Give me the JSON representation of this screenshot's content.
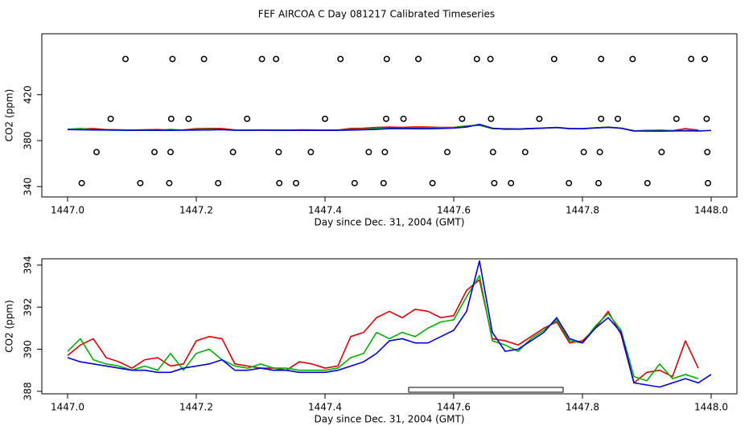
{
  "title": "FEF AIRCOA C  Day 081217  Calibrated Timeseries",
  "chart_data": [
    {
      "type": "line",
      "xlabel": "Day since Dec. 31, 2004 (GMT)",
      "ylabel": "CO2 (ppm)",
      "xlim": [
        1446.96,
        1448.04
      ],
      "ylim": [
        331,
        473
      ],
      "xticks": [
        {
          "value": 1447,
          "label": "1447.0"
        },
        1447.2,
        1447.4,
        1447.6,
        1447.8,
        {
          "value": 1448,
          "label": "1448.0"
        }
      ],
      "yticks": [
        340,
        380,
        420
      ],
      "x": [
        1447.0,
        1447.02,
        1447.04,
        1447.06,
        1447.08,
        1447.1,
        1447.12,
        1447.14,
        1447.16,
        1447.18,
        1447.2,
        1447.22,
        1447.24,
        1447.26,
        1447.28,
        1447.3,
        1447.32,
        1447.34,
        1447.36,
        1447.38,
        1447.4,
        1447.42,
        1447.44,
        1447.46,
        1447.48,
        1447.5,
        1447.52,
        1447.54,
        1447.56,
        1447.58,
        1447.6,
        1447.62,
        1447.64,
        1447.66,
        1447.68,
        1447.7,
        1447.72,
        1447.74,
        1447.76,
        1447.78,
        1447.8,
        1447.82,
        1447.84,
        1447.86,
        1447.88,
        1447.9,
        1447.92,
        1447.94,
        1447.96,
        1447.98,
        1448.0
      ],
      "series": [
        {
          "color": "#e00000",
          "values": [
            389.7,
            390.2,
            390.5,
            389.6,
            389.4,
            389.1,
            389.5,
            389.6,
            389.2,
            389.3,
            390.4,
            390.6,
            390.5,
            389.3,
            389.2,
            389.1,
            389.1,
            389.0,
            389.4,
            389.3,
            389.1,
            389.2,
            390.6,
            390.8,
            391.5,
            391.8,
            391.5,
            391.9,
            391.8,
            391.5,
            391.6,
            392.8,
            393.3,
            390.5,
            390.4,
            390.2,
            390.6,
            391.0,
            391.3,
            390.3,
            390.4,
            391.0,
            391.8,
            390.7,
            388.4,
            388.9,
            389.0,
            388.7,
            390.4,
            389.1,
            null
          ]
        },
        {
          "color": "#00b000",
          "values": [
            389.9,
            390.5,
            389.5,
            389.3,
            389.2,
            389.0,
            389.2,
            389.0,
            389.8,
            389.0,
            389.8,
            390.0,
            389.5,
            389.2,
            389.1,
            389.3,
            389.1,
            389.1,
            389.0,
            389.0,
            389.0,
            389.1,
            389.6,
            389.8,
            390.8,
            390.5,
            390.8,
            390.6,
            391.0,
            391.3,
            391.4,
            392.5,
            393.5,
            390.4,
            390.2,
            389.9,
            390.5,
            390.9,
            391.4,
            390.4,
            390.3,
            391.1,
            391.7,
            390.9,
            388.7,
            388.5,
            389.3,
            388.6,
            388.8,
            388.6,
            null
          ]
        },
        {
          "color": "#0000e0",
          "values": [
            389.6,
            389.4,
            389.3,
            389.2,
            389.1,
            389.0,
            389.0,
            388.9,
            388.9,
            389.1,
            389.2,
            389.3,
            389.5,
            389.0,
            389.0,
            389.1,
            389.0,
            389.0,
            388.9,
            388.9,
            388.9,
            389.0,
            389.2,
            389.4,
            389.8,
            390.4,
            390.5,
            390.3,
            390.3,
            390.6,
            390.9,
            391.8,
            394.2,
            390.8,
            389.9,
            390.0,
            390.4,
            390.8,
            391.5,
            390.5,
            390.3,
            391.0,
            391.5,
            390.8,
            388.4,
            388.3,
            388.2,
            388.4,
            388.6,
            388.4,
            388.8
          ]
        },
        {
          "color": "#000000",
          "marker": "circle",
          "x": [
            1447.09,
            1447.163,
            1447.212,
            1447.302,
            1447.324,
            1447.424,
            1447.496,
            1447.545,
            1447.636,
            1447.657,
            1447.756,
            1447.829,
            1447.878,
            1447.969,
            1447.99,
            1447.067,
            1447.161,
            1447.188,
            1447.279,
            1447.4,
            1447.495,
            1447.522,
            1447.613,
            1447.658,
            1447.733,
            1447.829,
            1447.855,
            1447.946,
            1447.993,
            1447.045,
            1447.135,
            1447.16,
            1447.257,
            1447.328,
            1447.378,
            1447.468,
            1447.493,
            1447.59,
            1447.661,
            1447.711,
            1447.802,
            1447.827,
            1447.923,
            1447.994,
            1447.022,
            1447.113,
            1447.158,
            1447.234,
            1447.329,
            1447.355,
            1447.446,
            1447.491,
            1447.567,
            1447.663,
            1447.689,
            1447.779,
            1447.825,
            1447.901,
            1447.995
          ],
          "values": [
            451,
            451,
            451,
            451,
            451,
            451,
            451,
            451,
            451,
            451,
            451,
            451,
            451,
            451,
            451,
            399,
            399,
            399,
            399,
            399,
            399,
            399,
            399,
            399,
            399,
            399,
            399,
            399,
            399,
            370,
            370,
            370,
            370,
            370,
            370,
            370,
            370,
            370,
            370,
            370,
            370,
            370,
            370,
            370,
            343,
            343,
            343,
            343,
            343,
            343,
            343,
            343,
            343,
            343,
            343,
            343,
            343,
            343,
            343
          ]
        }
      ]
    },
    {
      "type": "line",
      "xlabel": "Day since Dec. 31, 2004 (GMT)",
      "ylabel": "CO2 (ppm)",
      "xlim": [
        1446.96,
        1448.04
      ],
      "ylim": [
        387.88,
        394.3
      ],
      "xticks": [
        {
          "value": 1447,
          "label": "1447.0"
        },
        1447.2,
        1447.4,
        1447.6,
        1447.8,
        {
          "value": 1448,
          "label": "1448.0"
        }
      ],
      "yticks": [
        388,
        390,
        392,
        394
      ],
      "span": [
        1447.53,
        1447.77
      ],
      "x": [
        1447.0,
        1447.02,
        1447.04,
        1447.06,
        1447.08,
        1447.1,
        1447.12,
        1447.14,
        1447.16,
        1447.18,
        1447.2,
        1447.22,
        1447.24,
        1447.26,
        1447.28,
        1447.3,
        1447.32,
        1447.34,
        1447.36,
        1447.38,
        1447.4,
        1447.42,
        1447.44,
        1447.46,
        1447.48,
        1447.5,
        1447.52,
        1447.54,
        1447.56,
        1447.58,
        1447.6,
        1447.62,
        1447.64,
        1447.66,
        1447.68,
        1447.7,
        1447.72,
        1447.74,
        1447.76,
        1447.78,
        1447.8,
        1447.82,
        1447.84,
        1447.86,
        1447.88,
        1447.9,
        1447.92,
        1447.94,
        1447.96,
        1447.98,
        1448.0
      ],
      "series": [
        {
          "color": "#e00000",
          "values": [
            389.7,
            390.2,
            390.5,
            389.6,
            389.4,
            389.1,
            389.5,
            389.6,
            389.2,
            389.3,
            390.4,
            390.6,
            390.5,
            389.3,
            389.2,
            389.1,
            389.1,
            389.0,
            389.4,
            389.3,
            389.1,
            389.2,
            390.6,
            390.8,
            391.5,
            391.8,
            391.5,
            391.9,
            391.8,
            391.5,
            391.6,
            392.8,
            393.3,
            390.5,
            390.4,
            390.2,
            390.6,
            391.0,
            391.3,
            390.3,
            390.4,
            391.0,
            391.8,
            390.7,
            388.4,
            388.9,
            389.0,
            388.7,
            390.4,
            389.1,
            null
          ]
        },
        {
          "color": "#00b000",
          "values": [
            389.9,
            390.5,
            389.5,
            389.3,
            389.2,
            389.0,
            389.2,
            389.0,
            389.8,
            389.0,
            389.8,
            390.0,
            389.5,
            389.2,
            389.1,
            389.3,
            389.1,
            389.1,
            389.0,
            389.0,
            389.0,
            389.1,
            389.6,
            389.8,
            390.8,
            390.5,
            390.8,
            390.6,
            391.0,
            391.3,
            391.4,
            392.5,
            393.5,
            390.4,
            390.2,
            389.9,
            390.5,
            390.9,
            391.4,
            390.4,
            390.3,
            391.1,
            391.7,
            390.9,
            388.7,
            388.5,
            389.3,
            388.6,
            388.8,
            388.6,
            null
          ]
        },
        {
          "color": "#0000e0",
          "values": [
            389.6,
            389.4,
            389.3,
            389.2,
            389.1,
            389.0,
            389.0,
            388.9,
            388.9,
            389.1,
            389.2,
            389.3,
            389.5,
            389.0,
            389.0,
            389.1,
            389.0,
            389.0,
            388.9,
            388.9,
            388.9,
            389.0,
            389.2,
            389.4,
            389.8,
            390.4,
            390.5,
            390.3,
            390.3,
            390.6,
            390.9,
            391.8,
            394.2,
            390.8,
            389.9,
            390.0,
            390.4,
            390.8,
            391.5,
            390.5,
            390.3,
            391.0,
            391.5,
            390.8,
            388.4,
            388.3,
            388.2,
            388.4,
            388.6,
            388.4,
            388.8
          ]
        }
      ]
    }
  ]
}
